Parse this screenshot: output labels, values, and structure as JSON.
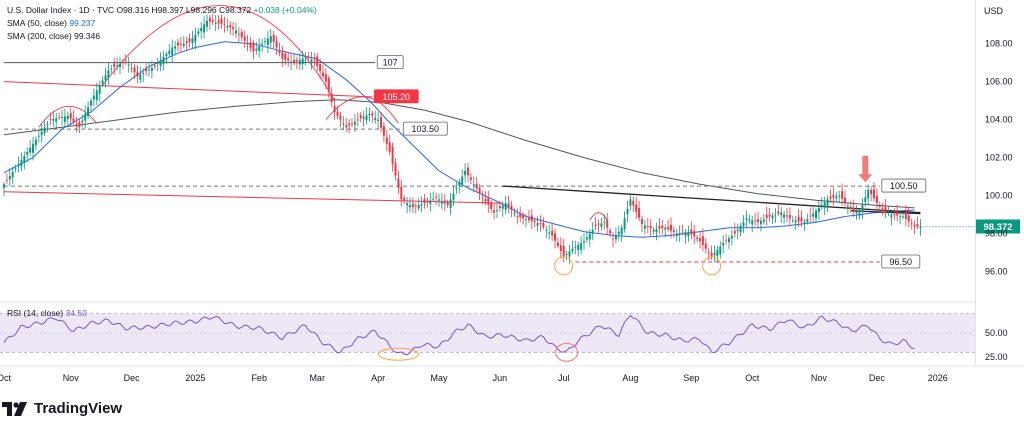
{
  "legend": {
    "symbol": "U.S. Dollar Index · 1D · TVC",
    "ohlc": "O98.316 H98.397 L98.296 C98.372",
    "change": "+0.038 (+0.04%)",
    "sma50_label": "SMA (50, close)",
    "sma50_value": "99.237",
    "sma200_label": "SMA (200, close)",
    "sma200_value": "99.346"
  },
  "currency": "USD",
  "rsi_legend": {
    "label": "RSI (14, close)",
    "value": "34.50"
  },
  "brand": "TradingView",
  "colors": {
    "up": "#089981",
    "down": "#f23645",
    "sma50": "#2962ff",
    "sma200": "#555555",
    "rsi": "#7e57c2",
    "rsi_band": "#ede7f6",
    "circle": "#f5a54a",
    "arrow": "#f07b7b"
  },
  "chart_data": [
    {
      "type": "candlestick",
      "title": "U.S. Dollar Index · 1D · TVC",
      "ylim": [
        94.5,
        110.3
      ],
      "y_ticks": [
        96.0,
        98.0,
        100.0,
        102.0,
        104.0,
        106.0,
        108.0
      ],
      "x_ticks": [
        "Oct",
        "Nov",
        "Dec",
        "2025",
        "Feb",
        "Mar",
        "Apr",
        "May",
        "Jun",
        "Jul",
        "Aug",
        "Sep",
        "Oct",
        "Nov",
        "Dec",
        "2026"
      ],
      "x_tick_index": [
        0,
        23,
        44,
        66,
        88,
        108,
        129,
        150,
        171,
        193,
        216,
        237,
        258,
        281,
        301,
        322
      ],
      "last_price": "98.372",
      "anchors": [
        {
          "i": 0,
          "v": 100.6
        },
        {
          "i": 8,
          "v": 102.3
        },
        {
          "i": 16,
          "v": 104.0
        },
        {
          "i": 22,
          "v": 104.2
        },
        {
          "i": 26,
          "v": 103.6
        },
        {
          "i": 30,
          "v": 105.0
        },
        {
          "i": 36,
          "v": 106.6
        },
        {
          "i": 42,
          "v": 107.1
        },
        {
          "i": 46,
          "v": 106.3
        },
        {
          "i": 52,
          "v": 106.8
        },
        {
          "i": 58,
          "v": 107.8
        },
        {
          "i": 64,
          "v": 108.1
        },
        {
          "i": 70,
          "v": 109.2
        },
        {
          "i": 76,
          "v": 109.0
        },
        {
          "i": 80,
          "v": 108.7
        },
        {
          "i": 86,
          "v": 107.6
        },
        {
          "i": 92,
          "v": 108.4
        },
        {
          "i": 96,
          "v": 107.2
        },
        {
          "i": 100,
          "v": 107.0
        },
        {
          "i": 104,
          "v": 107.3
        },
        {
          "i": 107,
          "v": 107.1
        },
        {
          "i": 111,
          "v": 106.0
        },
        {
          "i": 114,
          "v": 104.4
        },
        {
          "i": 118,
          "v": 103.6
        },
        {
          "i": 122,
          "v": 104.0
        },
        {
          "i": 126,
          "v": 104.3
        },
        {
          "i": 129,
          "v": 104.0
        },
        {
          "i": 133,
          "v": 102.3
        },
        {
          "i": 137,
          "v": 99.8
        },
        {
          "i": 141,
          "v": 99.4
        },
        {
          "i": 145,
          "v": 99.6
        },
        {
          "i": 149,
          "v": 99.9
        },
        {
          "i": 153,
          "v": 99.5
        },
        {
          "i": 156,
          "v": 100.4
        },
        {
          "i": 159,
          "v": 101.3
        },
        {
          "i": 162,
          "v": 100.6
        },
        {
          "i": 165,
          "v": 99.9
        },
        {
          "i": 169,
          "v": 99.1
        },
        {
          "i": 173,
          "v": 99.6
        },
        {
          "i": 177,
          "v": 98.9
        },
        {
          "i": 181,
          "v": 98.7
        },
        {
          "i": 185,
          "v": 98.5
        },
        {
          "i": 189,
          "v": 97.9
        },
        {
          "i": 193,
          "v": 96.8
        },
        {
          "i": 196,
          "v": 97.2
        },
        {
          "i": 200,
          "v": 97.6
        },
        {
          "i": 204,
          "v": 98.4
        },
        {
          "i": 207,
          "v": 98.6
        },
        {
          "i": 210,
          "v": 97.7
        },
        {
          "i": 213,
          "v": 98.3
        },
        {
          "i": 216,
          "v": 99.8
        },
        {
          "i": 220,
          "v": 98.5
        },
        {
          "i": 224,
          "v": 98.2
        },
        {
          "i": 228,
          "v": 98.3
        },
        {
          "i": 232,
          "v": 98.0
        },
        {
          "i": 236,
          "v": 98.1
        },
        {
          "i": 240,
          "v": 97.6
        },
        {
          "i": 244,
          "v": 96.8
        },
        {
          "i": 248,
          "v": 97.5
        },
        {
          "i": 252,
          "v": 98.0
        },
        {
          "i": 256,
          "v": 98.8
        },
        {
          "i": 260,
          "v": 98.6
        },
        {
          "i": 264,
          "v": 98.9
        },
        {
          "i": 268,
          "v": 99.1
        },
        {
          "i": 272,
          "v": 98.7
        },
        {
          "i": 276,
          "v": 98.6
        },
        {
          "i": 280,
          "v": 99.2
        },
        {
          "i": 284,
          "v": 99.8
        },
        {
          "i": 288,
          "v": 100.0
        },
        {
          "i": 292,
          "v": 99.3
        },
        {
          "i": 295,
          "v": 99.1
        },
        {
          "i": 298,
          "v": 100.3
        },
        {
          "i": 302,
          "v": 99.4
        },
        {
          "i": 306,
          "v": 99.0
        },
        {
          "i": 310,
          "v": 98.9
        },
        {
          "i": 314,
          "v": 98.37
        }
      ],
      "sma50_points": [
        [
          0,
          101.2
        ],
        [
          10,
          102.0
        ],
        [
          20,
          103.5
        ],
        [
          30,
          104.4
        ],
        [
          40,
          105.7
        ],
        [
          50,
          106.8
        ],
        [
          60,
          107.5
        ],
        [
          66,
          107.8
        ],
        [
          76,
          108.1
        ],
        [
          86,
          108.0
        ],
        [
          96,
          107.6
        ],
        [
          108,
          107.2
        ],
        [
          118,
          106.1
        ],
        [
          126,
          105.0
        ],
        [
          132,
          104.0
        ],
        [
          140,
          102.8
        ],
        [
          150,
          101.3
        ],
        [
          160,
          100.4
        ],
        [
          170,
          99.7
        ],
        [
          180,
          98.9
        ],
        [
          190,
          98.5
        ],
        [
          200,
          98.1
        ],
        [
          210,
          97.9
        ],
        [
          220,
          97.8
        ],
        [
          230,
          97.9
        ],
        [
          240,
          98.1
        ],
        [
          250,
          98.3
        ],
        [
          260,
          98.3
        ],
        [
          270,
          98.4
        ],
        [
          280,
          98.6
        ],
        [
          290,
          98.9
        ],
        [
          300,
          99.1
        ],
        [
          314,
          99.24
        ]
      ],
      "sma200_points": [
        [
          0,
          103.2
        ],
        [
          20,
          103.6
        ],
        [
          40,
          104.0
        ],
        [
          60,
          104.4
        ],
        [
          80,
          104.7
        ],
        [
          100,
          104.95
        ],
        [
          115,
          105.05
        ],
        [
          130,
          104.9
        ],
        [
          145,
          104.5
        ],
        [
          160,
          103.9
        ],
        [
          180,
          102.9
        ],
        [
          200,
          102.0
        ],
        [
          220,
          101.2
        ],
        [
          240,
          100.6
        ],
        [
          260,
          100.1
        ],
        [
          280,
          99.75
        ],
        [
          300,
          99.5
        ],
        [
          314,
          99.35
        ]
      ],
      "horizontal_levels": [
        {
          "label": "107",
          "value": 107.0,
          "style": "solid",
          "color": "#555555",
          "from_i": 0,
          "to_i": 128
        },
        {
          "label": "103.50",
          "value": 103.5,
          "style": "dashed",
          "color": "#777777",
          "from_i": 0,
          "to_i": 137
        },
        {
          "label": "100.50",
          "value": 100.5,
          "style": "dashed",
          "color": "#777777",
          "from_i": 0,
          "to_i": 302
        },
        {
          "label": "96.50",
          "value": 96.5,
          "style": "dashed",
          "color": "#f23645",
          "from_i": 197,
          "to_i": 302
        }
      ],
      "level_labels": [
        {
          "label": "107",
          "value": 107.0,
          "at_i": 128,
          "style": "box"
        },
        {
          "label": "105.20",
          "value": 105.2,
          "at_i": 127,
          "style": "red"
        },
        {
          "label": "103.50",
          "value": 103.5,
          "at_i": 137,
          "style": "box"
        },
        {
          "label": "100.50",
          "value": 100.5,
          "at_i": 302,
          "style": "box"
        },
        {
          "label": "96.50",
          "value": 96.5,
          "at_i": 302,
          "style": "box"
        }
      ],
      "trendlines": [
        {
          "name": "resistance-red",
          "color": "#f23645",
          "from": [
            0,
            106.0
          ],
          "to": [
            127,
            105.2
          ]
        },
        {
          "name": "support-red",
          "color": "#f23645",
          "from": [
            0,
            100.2
          ],
          "to": [
            172,
            99.6
          ]
        },
        {
          "name": "neckline",
          "color": "#222222",
          "from": [
            172,
            100.5
          ],
          "to": [
            316,
            99.1
          ]
        },
        {
          "name": "neckline-tail",
          "color": "#222222",
          "from": [
            292,
            99.2
          ],
          "to": [
            316,
            99.05
          ]
        }
      ],
      "arcs": [
        {
          "name": "arc-small",
          "color": "#f23645",
          "from": [
            12,
            103.6
          ],
          "peak": [
            22,
            104.7
          ],
          "to": [
            32,
            103.8
          ]
        },
        {
          "name": "arc-big",
          "color": "#f23645",
          "from": [
            34,
            105.8
          ],
          "peak": [
            76,
            110.0
          ],
          "to": [
            114,
            105.0
          ]
        },
        {
          "name": "arc-mid",
          "color": "#f23645",
          "from": [
            111,
            104.0
          ],
          "peak": [
            124,
            105.2
          ],
          "to": [
            136,
            103.8
          ]
        },
        {
          "name": "arc-tiny",
          "color": "#f23645",
          "from": [
            202,
            98.7
          ],
          "peak": [
            205,
            99.1
          ],
          "to": [
            208,
            98.7
          ]
        }
      ],
      "circles": [
        {
          "name": "low-circle-jul",
          "i": 193,
          "v": 96.3
        },
        {
          "name": "low-circle-sep",
          "i": 244,
          "v": 96.3
        }
      ],
      "arrow": {
        "i": 297,
        "v_top": 102.1,
        "v_tip": 100.7
      }
    },
    {
      "type": "line",
      "title": "RSI (14, close)",
      "ylim": [
        20,
        80
      ],
      "y_ticks": [
        25.0,
        50.0
      ],
      "bands": [
        30,
        70
      ],
      "mid": 50,
      "last_value": "34.50",
      "anchors": [
        {
          "i": 0,
          "v": 40
        },
        {
          "i": 6,
          "v": 56
        },
        {
          "i": 12,
          "v": 60
        },
        {
          "i": 18,
          "v": 66
        },
        {
          "i": 24,
          "v": 52
        },
        {
          "i": 30,
          "v": 60
        },
        {
          "i": 36,
          "v": 63
        },
        {
          "i": 42,
          "v": 55
        },
        {
          "i": 50,
          "v": 56
        },
        {
          "i": 58,
          "v": 60
        },
        {
          "i": 66,
          "v": 62
        },
        {
          "i": 72,
          "v": 67
        },
        {
          "i": 80,
          "v": 57
        },
        {
          "i": 88,
          "v": 55
        },
        {
          "i": 96,
          "v": 45
        },
        {
          "i": 104,
          "v": 58
        },
        {
          "i": 110,
          "v": 40
        },
        {
          "i": 116,
          "v": 30
        },
        {
          "i": 122,
          "v": 44
        },
        {
          "i": 128,
          "v": 52
        },
        {
          "i": 132,
          "v": 40
        },
        {
          "i": 136,
          "v": 28
        },
        {
          "i": 140,
          "v": 30
        },
        {
          "i": 144,
          "v": 38
        },
        {
          "i": 150,
          "v": 36
        },
        {
          "i": 156,
          "v": 52
        },
        {
          "i": 160,
          "v": 58
        },
        {
          "i": 166,
          "v": 46
        },
        {
          "i": 172,
          "v": 48
        },
        {
          "i": 180,
          "v": 42
        },
        {
          "i": 186,
          "v": 46
        },
        {
          "i": 190,
          "v": 35
        },
        {
          "i": 194,
          "v": 30
        },
        {
          "i": 198,
          "v": 42
        },
        {
          "i": 206,
          "v": 58
        },
        {
          "i": 212,
          "v": 48
        },
        {
          "i": 216,
          "v": 70
        },
        {
          "i": 222,
          "v": 50
        },
        {
          "i": 228,
          "v": 48
        },
        {
          "i": 234,
          "v": 42
        },
        {
          "i": 240,
          "v": 44
        },
        {
          "i": 244,
          "v": 30
        },
        {
          "i": 250,
          "v": 40
        },
        {
          "i": 258,
          "v": 58
        },
        {
          "i": 264,
          "v": 54
        },
        {
          "i": 270,
          "v": 64
        },
        {
          "i": 276,
          "v": 55
        },
        {
          "i": 282,
          "v": 66
        },
        {
          "i": 288,
          "v": 60
        },
        {
          "i": 292,
          "v": 52
        },
        {
          "i": 298,
          "v": 58
        },
        {
          "i": 302,
          "v": 44
        },
        {
          "i": 306,
          "v": 38
        },
        {
          "i": 310,
          "v": 42
        },
        {
          "i": 314,
          "v": 34.5
        }
      ],
      "circles": [
        {
          "name": "rsi-circle-apr",
          "i": 136,
          "v": 28,
          "color": "#f5a54a",
          "wide": true
        },
        {
          "name": "rsi-circle-jul",
          "i": 194,
          "v": 30,
          "color": "#f07b7b",
          "wide": false
        }
      ]
    }
  ]
}
